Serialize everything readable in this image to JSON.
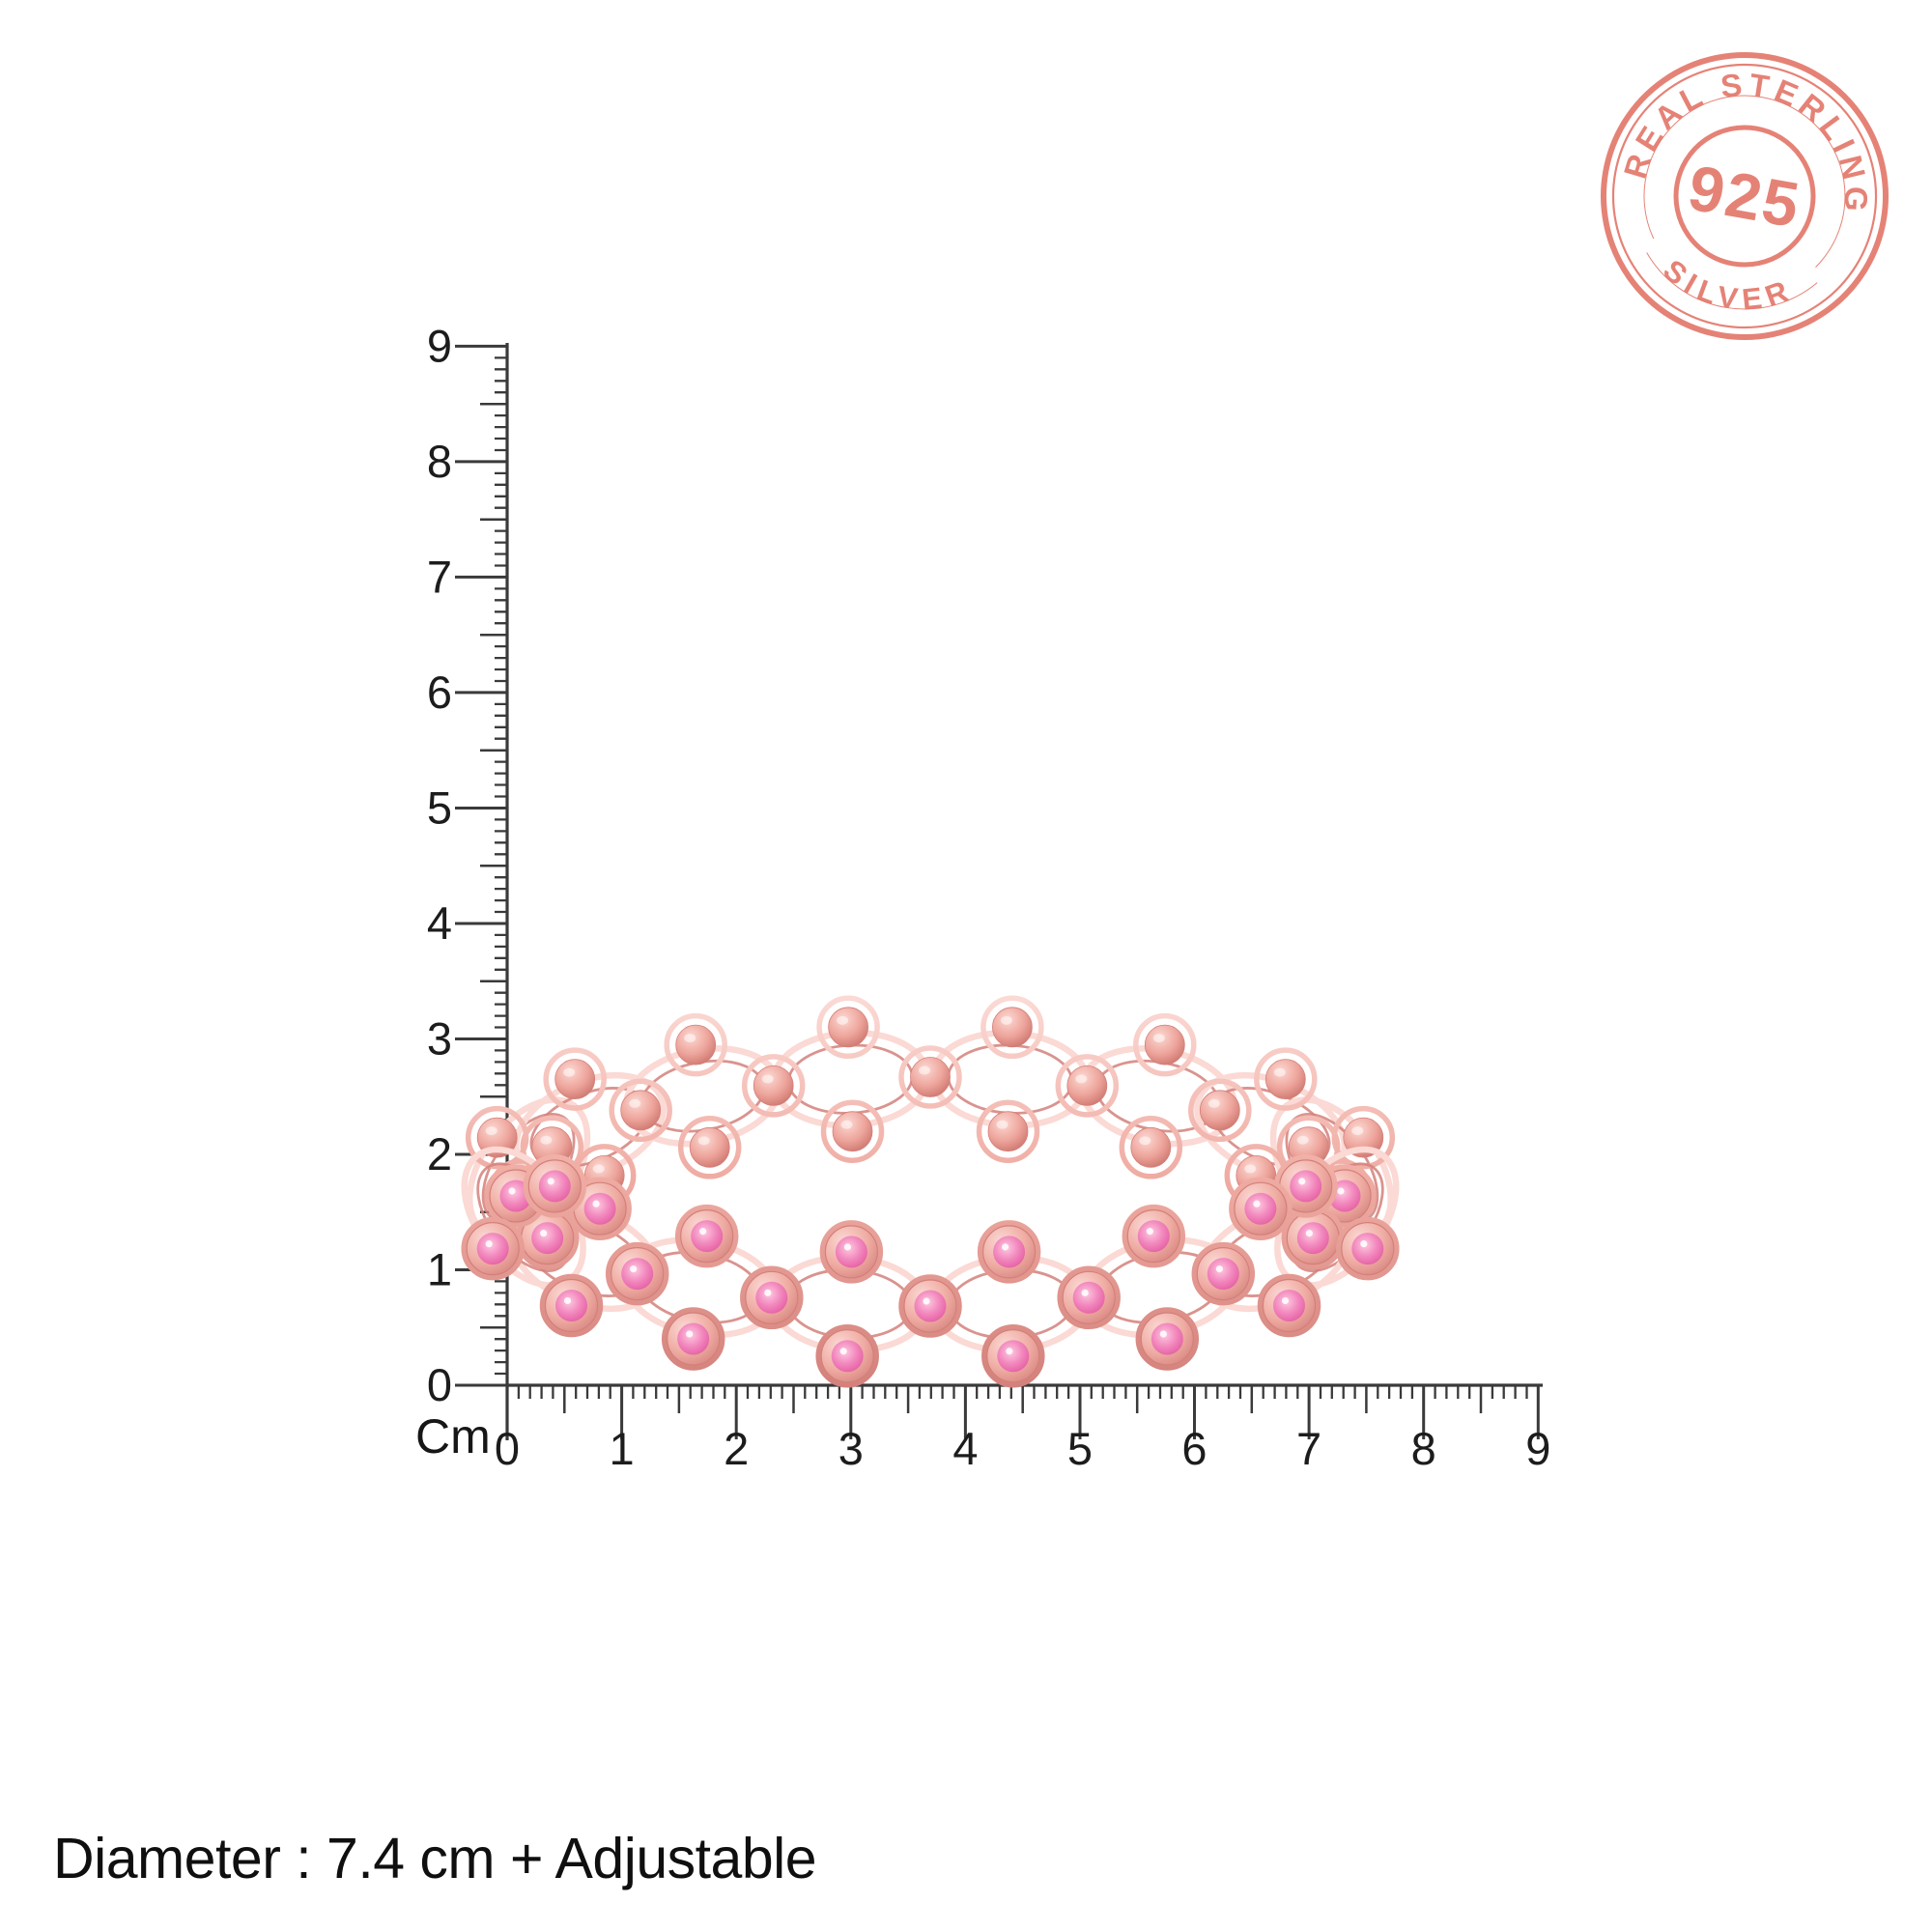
{
  "product": {
    "caption": "Diameter : 7.4 cm + Adjustable",
    "diameter_cm": "7.4",
    "item": "rose-gold bangle bracelet with pink crystals"
  },
  "stamp": {
    "top_text": "REAL STERLING",
    "center_text": "925",
    "bottom_text": "SILVER",
    "color": "#e4796c"
  },
  "ruler": {
    "unit_label": "Cm",
    "vertical_labels": [
      "9",
      "8",
      "7",
      "6",
      "5",
      "4",
      "3",
      "2",
      "1",
      "0"
    ],
    "horizontal_labels": [
      "0",
      "1",
      "2",
      "3",
      "4",
      "5",
      "6",
      "7",
      "8",
      "9"
    ],
    "tick_color": "#3a3a3a",
    "label_color": "#1c1c1c"
  },
  "bracelet": {
    "metal": "#efaca3",
    "metal_dark": "#d3807a",
    "metal_light": "#fbd9d4",
    "bead_light": "#fcd9d3",
    "bead_mid": "#eda49b",
    "bead_dark": "#c97169",
    "stone_light": "#fdc9e0",
    "stone_mid": "#f287bd",
    "stone_dark": "#e0559c"
  }
}
